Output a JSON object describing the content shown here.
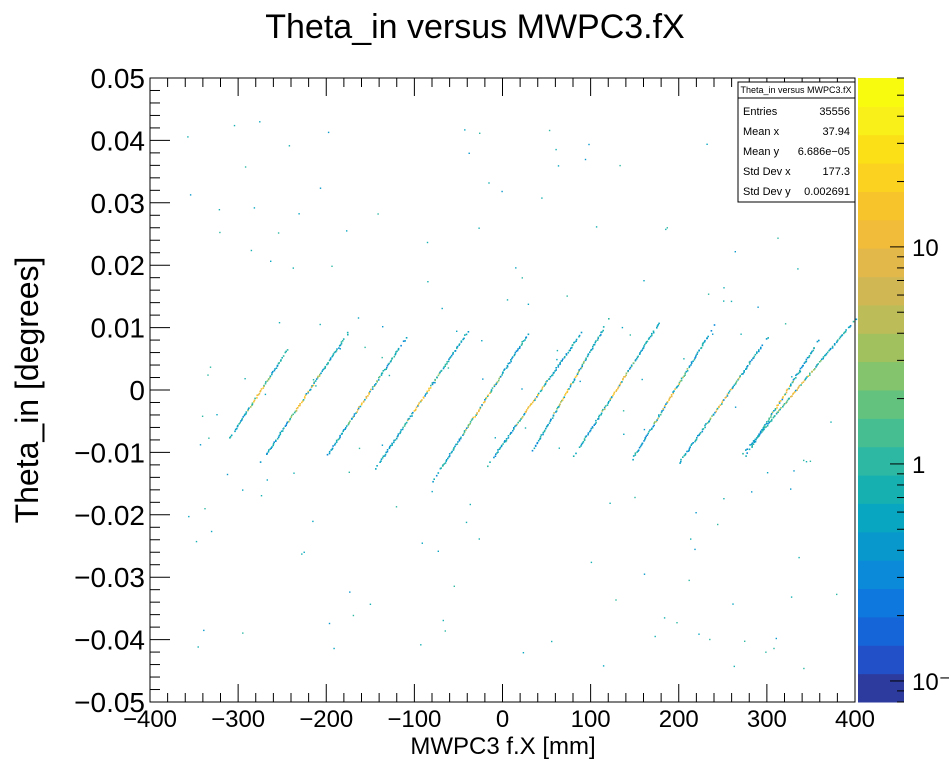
{
  "chart_data": {
    "type": "heatmap",
    "title": "Theta_in versus MWPC3.fX",
    "xlabel": "MWPC3 f.X [mm]",
    "ylabel": "Theta_in [degrees]",
    "xlim": [
      -400,
      400
    ],
    "ylim": [
      -0.05,
      0.05
    ],
    "x_ticks": [
      "−400",
      "−300",
      "−200",
      "−100",
      "0",
      "100",
      "200",
      "300",
      "400"
    ],
    "x_tick_values": [
      -400,
      -300,
      -200,
      -100,
      0,
      100,
      200,
      300,
      400
    ],
    "y_ticks": [
      "0.05",
      "0.04",
      "0.03",
      "0.02",
      "0.01",
      "0",
      "−0.01",
      "−0.02",
      "−0.03",
      "−0.04",
      "−0.05"
    ],
    "y_tick_values": [
      0.05,
      0.04,
      0.03,
      0.02,
      0.01,
      0,
      -0.01,
      -0.02,
      -0.03,
      -0.04,
      -0.05
    ],
    "z_scale": "log",
    "z_ticks": [
      "10",
      "1",
      "10⁻¹"
    ],
    "z_tick_values": [
      10,
      1,
      0.1
    ],
    "z_range": [
      0.08,
      60
    ],
    "palette": [
      "#2e3b9e",
      "#2250c8",
      "#1565d8",
      "#0f78df",
      "#0a8ad8",
      "#0898cc",
      "#08a6c0",
      "#16b0b1",
      "#2db8a3",
      "#47be91",
      "#63c27e",
      "#83c46c",
      "#a0c15e",
      "#bcbc58",
      "#d1b754",
      "#e2b84a",
      "#f0bc3a",
      "#f7c52b",
      "#fbd21f",
      "#fbe018",
      "#f9f01a",
      "#f9fb0e"
    ],
    "bands": [
      {
        "x_start": -310,
        "y_start": -0.0075,
        "x_end": -245,
        "y_end": 0.0065
      },
      {
        "x_start": -275,
        "y_start": -0.0115,
        "x_end": -175,
        "y_end": 0.0095
      },
      {
        "x_start": -205,
        "y_start": -0.0115,
        "x_end": -110,
        "y_end": 0.0085
      },
      {
        "x_start": -145,
        "y_start": -0.0125,
        "x_end": -40,
        "y_end": 0.0095
      },
      {
        "x_start": -80,
        "y_start": -0.0145,
        "x_end": 30,
        "y_end": 0.0095
      },
      {
        "x_start": -20,
        "y_start": -0.0125,
        "x_end": 90,
        "y_end": 0.0095
      },
      {
        "x_start": 30,
        "y_start": -0.0105,
        "x_end": 120,
        "y_end": 0.0115
      },
      {
        "x_start": 80,
        "y_start": -0.0105,
        "x_end": 180,
        "y_end": 0.0115
      },
      {
        "x_start": 140,
        "y_start": -0.0125,
        "x_end": 240,
        "y_end": 0.0105
      },
      {
        "x_start": 200,
        "y_start": -0.0115,
        "x_end": 300,
        "y_end": 0.0085
      },
      {
        "x_start": 275,
        "y_start": -0.0105,
        "x_end": 360,
        "y_end": 0.0085
      },
      {
        "x_start": 270,
        "y_start": -0.0105,
        "x_end": 400,
        "y_end": 0.0115
      }
    ],
    "stats": {
      "name": "Theta_in versus MWPC3.fX",
      "rows": [
        {
          "label": "Entries",
          "value": "35556"
        },
        {
          "label": "Mean x",
          "value": "37.94"
        },
        {
          "label": "Mean y",
          "value": "6.686e−05"
        },
        {
          "label": "Std Dev x",
          "value": "177.3"
        },
        {
          "label": "Std Dev y",
          "value": "0.002691"
        }
      ]
    }
  }
}
